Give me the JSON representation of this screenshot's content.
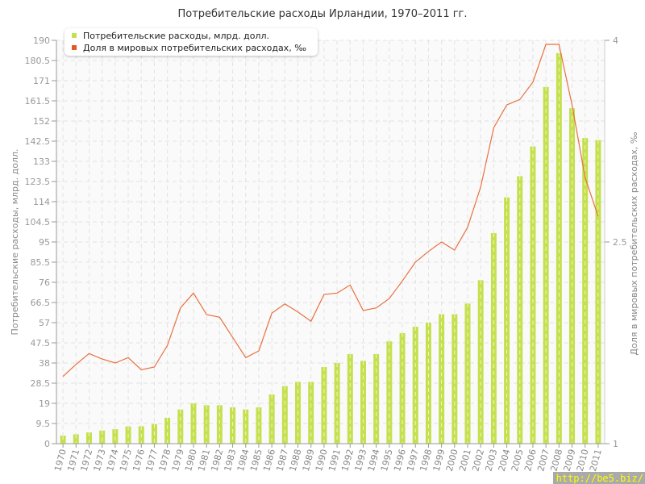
{
  "chart_data": {
    "type": "bar+line",
    "title": "Потребительские расходы Ирландии, 1970–2011 гг.",
    "ylabel_left": "Потребительские расходы, млрд. долл.",
    "ylabel_right": "Доля в мировых потребительских расходах, ‰",
    "ylim_left": [
      0,
      190
    ],
    "ylim_right": [
      1,
      4
    ],
    "yticks_left": [
      "0",
      "9.5",
      "19",
      "28.5",
      "38",
      "47.5",
      "57",
      "66.5",
      "76",
      "85.5",
      "95",
      "104.5",
      "114",
      "123.5",
      "133",
      "142.5",
      "152",
      "161.5",
      "171",
      "180.5",
      "190"
    ],
    "yticks_right": [
      "1",
      "2.5",
      "4"
    ],
    "grid": true,
    "legend_placement": "top-left",
    "categories": [
      "1970",
      "1971",
      "1972",
      "1973",
      "1974",
      "1975",
      "1976",
      "1977",
      "1978",
      "1979",
      "1980",
      "1981",
      "1982",
      "1983",
      "1984",
      "1985",
      "1986",
      "1987",
      "1988",
      "1989",
      "1990",
      "1991",
      "1992",
      "1993",
      "1994",
      "1995",
      "1996",
      "1997",
      "1998",
      "1999",
      "2000",
      "2001",
      "2002",
      "2003",
      "2004",
      "2005",
      "2006",
      "2007",
      "2008",
      "2009",
      "2010",
      "2011"
    ],
    "series": [
      {
        "name": "Потребительские расходы, млрд. долл.",
        "type": "bar",
        "axis": "left",
        "color": "#c5e04f",
        "values": [
          3.8,
          4.4,
          5.3,
          6.2,
          6.8,
          8.1,
          8.2,
          9.2,
          12.2,
          16.1,
          19,
          18.1,
          18.1,
          17.1,
          16.1,
          17.1,
          23.2,
          27.1,
          29.1,
          29.1,
          36.1,
          38,
          42.2,
          39,
          42.2,
          48.2,
          52.1,
          55.1,
          57,
          61,
          61,
          66,
          77,
          99.2,
          116,
          126,
          140,
          168,
          184,
          158,
          144,
          143
        ]
      },
      {
        "name": "Доля в мировых потребительских расходах, ‰",
        "type": "line",
        "axis": "right",
        "color": "#e8703f",
        "values": [
          1.5,
          1.59,
          1.67,
          1.63,
          1.6,
          1.64,
          1.55,
          1.57,
          1.73,
          2.01,
          2.12,
          1.96,
          1.94,
          1.79,
          1.64,
          1.69,
          1.97,
          2.04,
          1.98,
          1.91,
          2.11,
          2.12,
          2.18,
          1.99,
          2.01,
          2.08,
          2.21,
          2.35,
          2.43,
          2.5,
          2.44,
          2.61,
          2.91,
          3.35,
          3.52,
          3.56,
          3.69,
          3.97,
          3.97,
          3.52,
          2.98,
          2.69
        ]
      }
    ]
  },
  "watermark": "http://be5.biz/"
}
